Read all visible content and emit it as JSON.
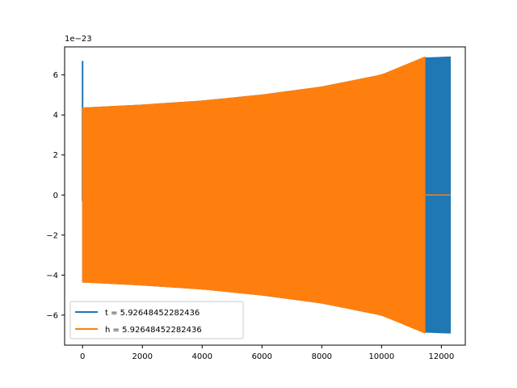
{
  "chart_data": {
    "type": "line",
    "title": "",
    "xlabel": "",
    "ylabel": "",
    "y_offset_label": "1e−23",
    "xlim": [
      -600,
      12800
    ],
    "ylim": [
      -7.5,
      7.4
    ],
    "x_ticks": [
      0,
      2000,
      4000,
      6000,
      8000,
      10000,
      12000
    ],
    "y_ticks": [
      -6,
      -4,
      -2,
      0,
      2,
      4,
      6
    ],
    "x_tick_labels": [
      "0",
      "2000",
      "4000",
      "6000",
      "8000",
      "10000",
      "12000"
    ],
    "y_tick_labels": [
      "−6",
      "−4",
      "−2",
      "0",
      "2",
      "4",
      "6"
    ],
    "grid": false,
    "legend_position": "lower-left",
    "series": [
      {
        "name": "t = 5.92648452282436",
        "color": "#1f77b4",
        "envelope": [
          {
            "x": 0,
            "amp": 4.35
          },
          {
            "x": 2000,
            "amp": 4.5
          },
          {
            "x": 4000,
            "amp": 4.7
          },
          {
            "x": 6000,
            "amp": 5.0
          },
          {
            "x": 8000,
            "amp": 5.4
          },
          {
            "x": 10000,
            "amp": 6.0
          },
          {
            "x": 11400,
            "amp": 6.85
          },
          {
            "x": 12300,
            "amp": 6.9
          }
        ],
        "spike": {
          "x": 0,
          "max": 6.7,
          "min": -0.3
        }
      },
      {
        "name": "h = 5.92648452282436",
        "color": "#ff7f0e",
        "envelope": [
          {
            "x": 0,
            "amp": 4.35
          },
          {
            "x": 2000,
            "amp": 4.5
          },
          {
            "x": 4000,
            "amp": 4.7
          },
          {
            "x": 6000,
            "amp": 5.0
          },
          {
            "x": 8000,
            "amp": 5.4
          },
          {
            "x": 10000,
            "amp": 6.0
          },
          {
            "x": 11450,
            "amp": 6.9
          }
        ],
        "tail": {
          "x_start": 11450,
          "x_end": 12300,
          "value": 0
        }
      }
    ]
  }
}
